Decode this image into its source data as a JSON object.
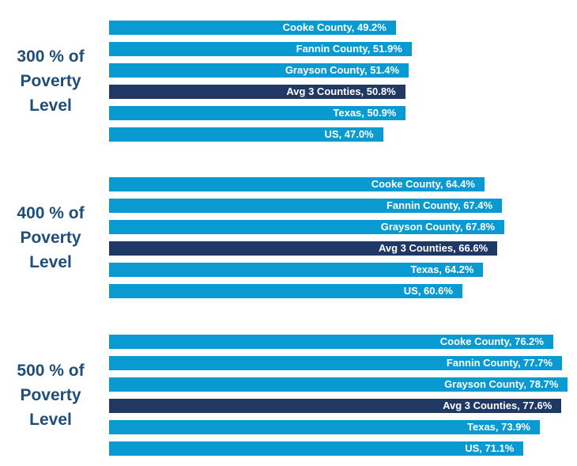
{
  "chart_data": [
    {
      "type": "bar",
      "orientation": "horizontal",
      "title_lines": [
        "300 % of",
        "Poverty",
        "Level"
      ],
      "categories": [
        "Cooke County",
        "Fannin County",
        "Grayson County",
        "Avg 3 Counties",
        "Texas",
        "US"
      ],
      "values": [
        49.2,
        51.9,
        51.4,
        50.8,
        50.9,
        47.0
      ],
      "data_labels": [
        "Cooke County, 49.2%",
        "Fannin County, 51.9%",
        "Grayson County, 51.4%",
        "Avg 3 Counties, 50.8%",
        "Texas, 50.9%",
        "US, 47.0%"
      ],
      "highlight_index": 3
    },
    {
      "type": "bar",
      "orientation": "horizontal",
      "title_lines": [
        "400 % of",
        "Poverty",
        "Level"
      ],
      "categories": [
        "Cooke County",
        "Fannin County",
        "Grayson County",
        "Avg 3 Counties",
        "Texas",
        "US"
      ],
      "values": [
        64.4,
        67.4,
        67.8,
        66.6,
        64.2,
        60.6
      ],
      "data_labels": [
        "Cooke County, 64.4%",
        "Fannin County, 67.4%",
        "Grayson County, 67.8%",
        "Avg 3 Counties, 66.6%",
        "Texas, 64.2%",
        "US, 60.6%"
      ],
      "highlight_index": 3
    },
    {
      "type": "bar",
      "orientation": "horizontal",
      "title_lines": [
        "500 % of",
        "Poverty",
        "Level"
      ],
      "categories": [
        "Cooke County",
        "Fannin County",
        "Grayson County",
        "Avg 3 Counties",
        "Texas",
        "US"
      ],
      "values": [
        76.2,
        77.7,
        78.7,
        77.6,
        73.9,
        71.1
      ],
      "data_labels": [
        "Cooke County, 76.2%",
        "Fannin County, 77.7%",
        "Grayson County, 78.7%",
        "Avg 3 Counties, 77.6%",
        "Texas, 73.9%",
        "US, 71.1%"
      ],
      "highlight_index": 3
    }
  ],
  "colors": {
    "bar": "#0a9ad2",
    "highlight_bar": "#1f3864",
    "group_label": "#1f4e79",
    "bar_label": "#ffffff"
  }
}
